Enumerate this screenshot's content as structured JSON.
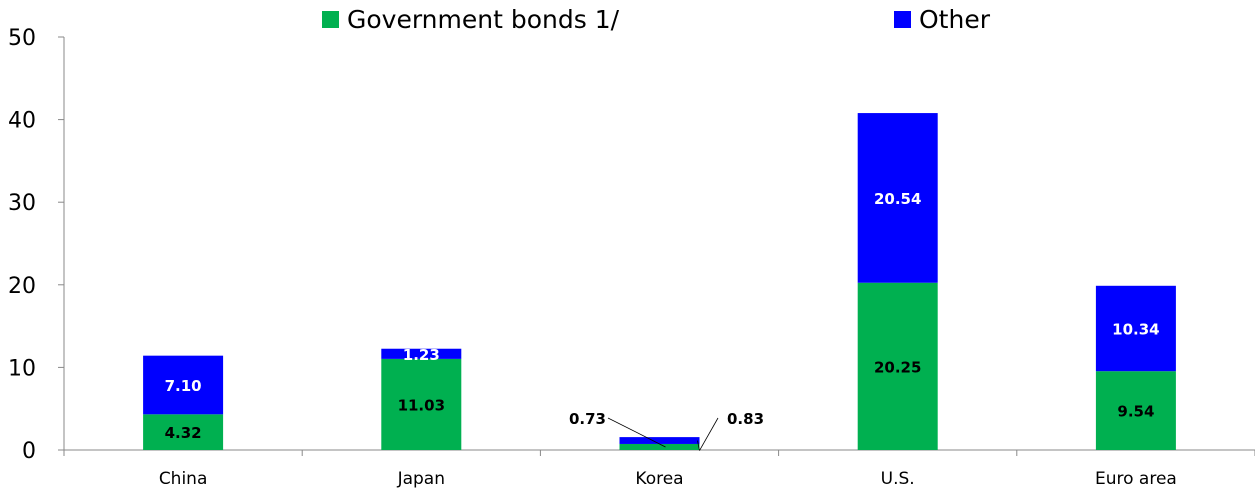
{
  "chart_data": {
    "type": "bar",
    "stacked": true,
    "categories": [
      "China",
      "Japan",
      "Korea",
      "U.S.",
      "Euro area"
    ],
    "series": [
      {
        "name": "Government bonds 1/",
        "color": "#00b050",
        "values": [
          4.32,
          11.03,
          0.73,
          20.25,
          9.54
        ]
      },
      {
        "name": "Other",
        "color": "#0000ff",
        "values": [
          7.1,
          1.23,
          0.83,
          20.54,
          10.34
        ]
      }
    ],
    "data_labels": [
      [
        "4.32",
        "11.03",
        "0.73",
        "20.25",
        "9.54"
      ],
      [
        "7.10",
        "1.23",
        "0.83",
        "20.54",
        "10.34"
      ]
    ],
    "yticks": [
      0,
      10,
      20,
      30,
      40,
      50
    ],
    "ylim": [
      0,
      50
    ],
    "title": "",
    "xlabel": "",
    "ylabel": "",
    "grid": false,
    "legend_position": "top-center"
  }
}
